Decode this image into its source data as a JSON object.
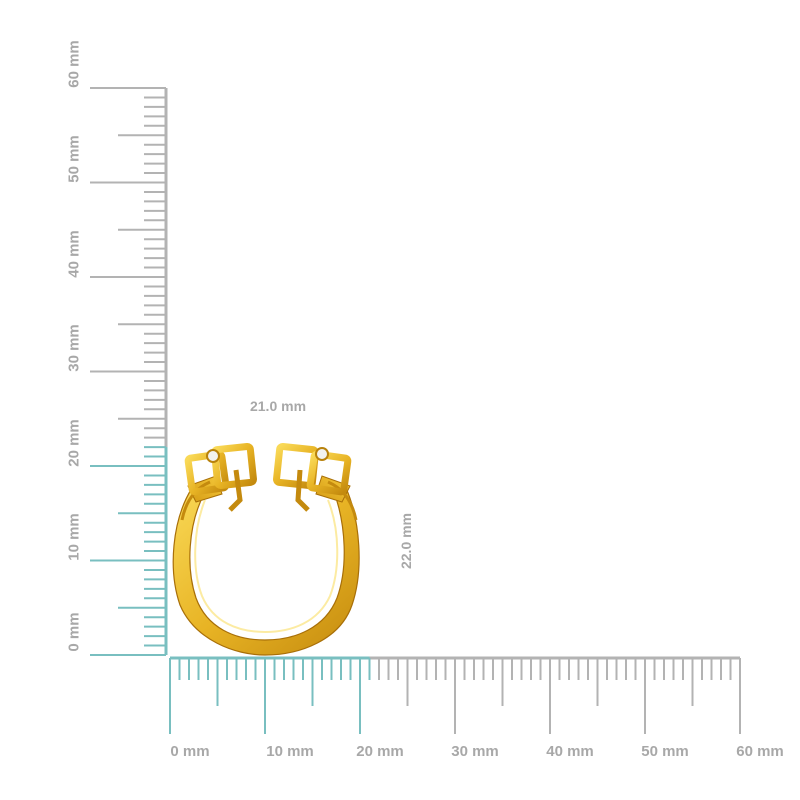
{
  "rulers": {
    "unit": "mm",
    "range": [
      0,
      60
    ],
    "x_labels": [
      "0 mm",
      "10 mm",
      "20 mm",
      "30 mm",
      "40 mm",
      "50 mm",
      "60 mm"
    ],
    "y_labels": [
      "0 mm",
      "10 mm",
      "20 mm",
      "30 mm",
      "40 mm",
      "50 mm",
      "60 mm"
    ],
    "highlight_x_mm": [
      0,
      21.0
    ],
    "highlight_y_mm": [
      0,
      22.0
    ]
  },
  "dimensions": {
    "width": "21.0 mm",
    "height": "22.0 mm"
  },
  "colors": {
    "ruler_gray": "#b3b3b3",
    "label_gray": "#a8a8a8",
    "highlight_teal": "#79bfc0",
    "gold": "#e8b425",
    "gold_dark": "#b8820c",
    "gold_light": "#f7d04a"
  },
  "product": {
    "icon": "ring-image"
  }
}
